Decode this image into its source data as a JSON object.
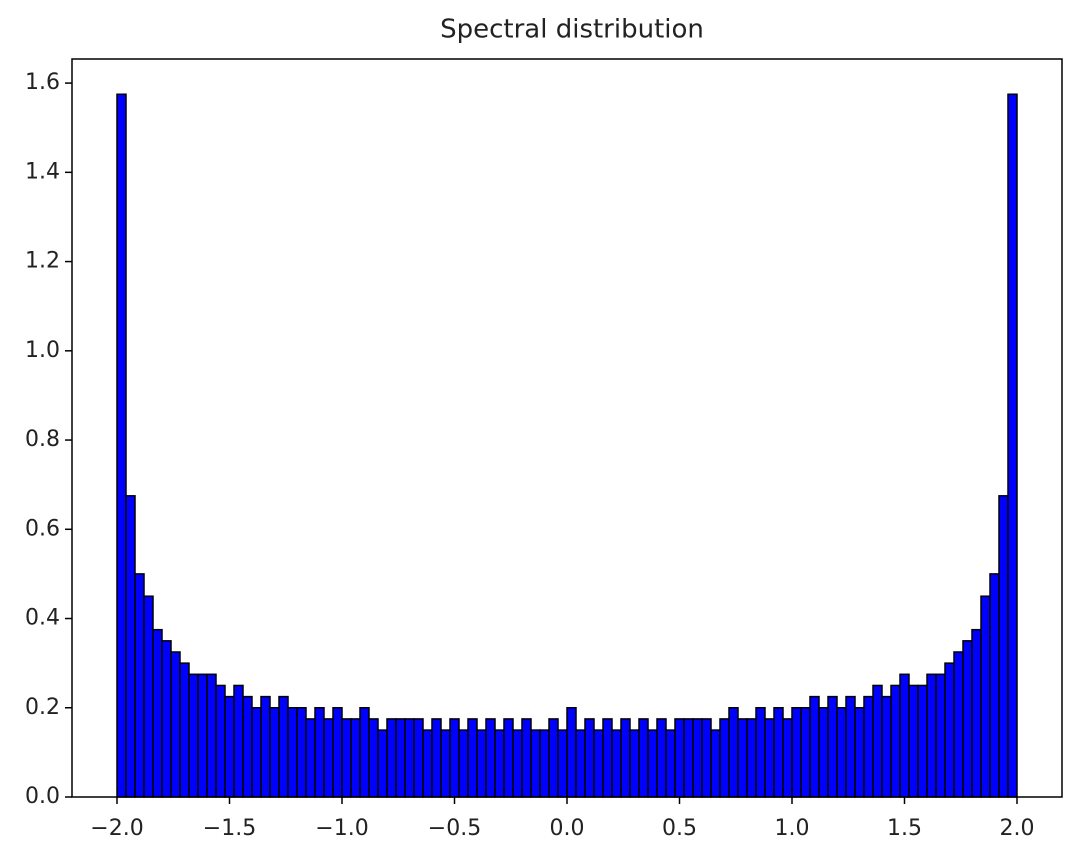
{
  "chart_data": {
    "type": "histogram",
    "title": "Spectral distribution",
    "bins": [
      -2,
      -1.96,
      -1.92,
      -1.88,
      -1.84,
      -1.8,
      -1.76,
      -1.72,
      -1.68,
      -1.64,
      -1.6,
      -1.56,
      -1.52,
      -1.48,
      -1.44,
      -1.4,
      -1.36,
      -1.32,
      -1.28,
      -1.24,
      -1.2,
      -1.16,
      -1.12,
      -1.08,
      -1.04,
      -1,
      -0.96,
      -0.92,
      -0.88,
      -0.84,
      -0.8,
      -0.76,
      -0.72,
      -0.68,
      -0.64,
      -0.6,
      -0.56,
      -0.52,
      -0.48,
      -0.44,
      -0.4,
      -0.36,
      -0.32,
      -0.28,
      -0.24,
      -0.2,
      -0.16,
      -0.12,
      -0.08,
      -0.04,
      0,
      0.04,
      0.08,
      0.12,
      0.16,
      0.2,
      0.24,
      0.28,
      0.32,
      0.36,
      0.4,
      0.44,
      0.48,
      0.52,
      0.56,
      0.6,
      0.64,
      0.68,
      0.72,
      0.76,
      0.8,
      0.84,
      0.88,
      0.92,
      0.96,
      1,
      1.04,
      1.08,
      1.12,
      1.16,
      1.2,
      1.24,
      1.28,
      1.32,
      1.36,
      1.4,
      1.44,
      1.48,
      1.52,
      1.56,
      1.6,
      1.64,
      1.68,
      1.72,
      1.76,
      1.8,
      1.84,
      1.88,
      1.92,
      1.96,
      2
    ],
    "values": [
      1.575,
      0.675,
      0.5,
      0.45,
      0.375,
      0.35,
      0.325,
      0.3,
      0.275,
      0.275,
      0.275,
      0.25,
      0.225,
      0.25,
      0.225,
      0.2,
      0.225,
      0.2,
      0.225,
      0.2,
      0.2,
      0.175,
      0.2,
      0.175,
      0.2,
      0.175,
      0.175,
      0.2,
      0.175,
      0.15,
      0.175,
      0.175,
      0.175,
      0.175,
      0.15,
      0.175,
      0.15,
      0.175,
      0.15,
      0.175,
      0.15,
      0.175,
      0.15,
      0.175,
      0.15,
      0.175,
      0.15,
      0.15,
      0.175,
      0.15,
      0.2,
      0.15,
      0.175,
      0.15,
      0.175,
      0.15,
      0.175,
      0.15,
      0.175,
      0.15,
      0.175,
      0.15,
      0.175,
      0.175,
      0.175,
      0.175,
      0.15,
      0.175,
      0.2,
      0.175,
      0.175,
      0.2,
      0.175,
      0.2,
      0.175,
      0.2,
      0.2,
      0.225,
      0.2,
      0.225,
      0.2,
      0.225,
      0.2,
      0.225,
      0.25,
      0.225,
      0.25,
      0.275,
      0.25,
      0.25,
      0.275,
      0.275,
      0.3,
      0.325,
      0.35,
      0.375,
      0.45,
      0.5,
      0.675,
      1.575
    ],
    "color": "#0000ff",
    "edgecolor": "#000000",
    "xlim": [
      -2.2,
      2.2
    ],
    "ylim": [
      0,
      1.654
    ],
    "xticks": [
      {
        "value": -2,
        "label": "−2.0"
      },
      {
        "value": -1.5,
        "label": "−1.5"
      },
      {
        "value": -1,
        "label": "−1.0"
      },
      {
        "value": -0.5,
        "label": "−0.5"
      },
      {
        "value": 0,
        "label": "0.0"
      },
      0.5,
      {
        "value": 1,
        "label": "1.0"
      },
      1.5,
      {
        "value": 2,
        "label": "2.0"
      }
    ],
    "yticks": [
      {
        "value": 0,
        "label": "0.0"
      },
      0.2,
      0.4,
      0.6,
      0.8,
      {
        "value": 1,
        "label": "1.0"
      },
      1.2,
      1.4,
      1.6
    ]
  }
}
